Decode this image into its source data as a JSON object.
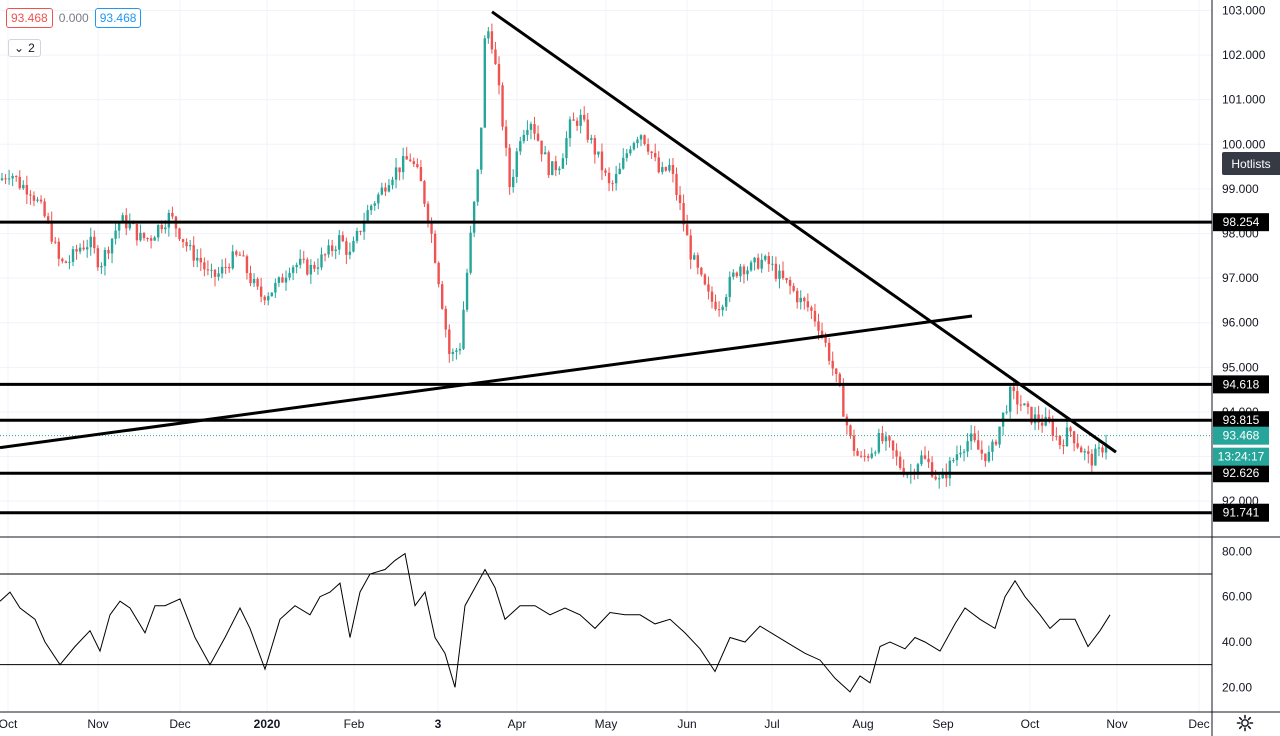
{
  "legend": {
    "open": "93.468",
    "change": "0.000",
    "close": "93.468"
  },
  "indicators_count": "2",
  "hotlists_label": "Hotlists",
  "countdown": "13:24:17",
  "colors": {
    "up": "#26a69a",
    "down": "#ef5350",
    "last": "#26a69a",
    "line": "#000000"
  },
  "chart_data": {
    "type": "candlestick",
    "symbol_last": 93.468,
    "price_axis": {
      "ticks": [
        103.0,
        102.0,
        101.0,
        100.0,
        99.0,
        98.0,
        97.0,
        96.0,
        95.0,
        94.0,
        93.0,
        92.0
      ],
      "range": [
        91.6,
        103.1
      ]
    },
    "time_axis_labels": [
      "Oct",
      "Nov",
      "Dec",
      "2020",
      "Feb",
      "3",
      "Apr",
      "May",
      "Jun",
      "Jul",
      "Aug",
      "Sep",
      "Oct",
      "Nov",
      "Dec"
    ],
    "horizontal_levels": [
      98.254,
      94.618,
      93.815,
      92.626,
      91.741
    ],
    "level_labels": [
      "98.254",
      "94.618",
      "93.815",
      "92.626",
      "91.741"
    ],
    "last_label": "93.468",
    "price_path": [
      [
        0,
        99.2
      ],
      [
        10,
        99.4
      ],
      [
        20,
        99.1
      ],
      [
        30,
        99.0
      ],
      [
        40,
        98.6
      ],
      [
        50,
        98.1
      ],
      [
        60,
        97.3
      ],
      [
        70,
        97.4
      ],
      [
        80,
        97.7
      ],
      [
        90,
        97.8
      ],
      [
        100,
        97.3
      ],
      [
        110,
        97.8
      ],
      [
        120,
        98.3
      ],
      [
        130,
        98.2
      ],
      [
        140,
        97.9
      ],
      [
        150,
        97.9
      ],
      [
        160,
        98.2
      ],
      [
        170,
        98.4
      ],
      [
        180,
        98.0
      ],
      [
        190,
        97.6
      ],
      [
        200,
        97.4
      ],
      [
        210,
        97.0
      ],
      [
        220,
        97.1
      ],
      [
        230,
        97.4
      ],
      [
        240,
        97.5
      ],
      [
        250,
        97.0
      ],
      [
        260,
        96.6
      ],
      [
        270,
        96.7
      ],
      [
        280,
        96.9
      ],
      [
        290,
        97.3
      ],
      [
        300,
        97.3
      ],
      [
        310,
        97.2
      ],
      [
        320,
        97.4
      ],
      [
        330,
        97.6
      ],
      [
        340,
        97.9
      ],
      [
        350,
        97.5
      ],
      [
        360,
        98.1
      ],
      [
        370,
        98.6
      ],
      [
        380,
        98.9
      ],
      [
        390,
        99.3
      ],
      [
        400,
        99.5
      ],
      [
        410,
        99.7
      ],
      [
        420,
        99.2
      ],
      [
        430,
        98.2
      ],
      [
        440,
        96.8
      ],
      [
        450,
        95.2
      ],
      [
        460,
        95.5
      ],
      [
        470,
        97.8
      ],
      [
        480,
        99.8
      ],
      [
        485,
        102.4
      ],
      [
        490,
        102.6
      ],
      [
        500,
        101.0
      ],
      [
        510,
        99.0
      ],
      [
        520,
        100.2
      ],
      [
        530,
        100.6
      ],
      [
        540,
        100.0
      ],
      [
        550,
        99.4
      ],
      [
        560,
        99.6
      ],
      [
        570,
        100.4
      ],
      [
        580,
        100.6
      ],
      [
        590,
        100.1
      ],
      [
        600,
        99.6
      ],
      [
        610,
        99.0
      ],
      [
        620,
        99.4
      ],
      [
        630,
        100.0
      ],
      [
        640,
        100.3
      ],
      [
        650,
        99.9
      ],
      [
        660,
        99.3
      ],
      [
        670,
        99.5
      ],
      [
        680,
        98.6
      ],
      [
        690,
        97.6
      ],
      [
        700,
        97.0
      ],
      [
        710,
        96.5
      ],
      [
        720,
        96.4
      ],
      [
        730,
        96.9
      ],
      [
        740,
        97.3
      ],
      [
        750,
        97.2
      ],
      [
        760,
        97.4
      ],
      [
        770,
        97.3
      ],
      [
        780,
        97.0
      ],
      [
        790,
        96.8
      ],
      [
        800,
        96.5
      ],
      [
        810,
        96.3
      ],
      [
        820,
        95.9
      ],
      [
        830,
        95.2
      ],
      [
        840,
        94.4
      ],
      [
        850,
        93.4
      ],
      [
        860,
        92.9
      ],
      [
        870,
        93.1
      ],
      [
        880,
        93.4
      ],
      [
        890,
        93.2
      ],
      [
        900,
        92.8
      ],
      [
        910,
        92.6
      ],
      [
        920,
        93.0
      ],
      [
        930,
        92.8
      ],
      [
        940,
        92.4
      ],
      [
        950,
        92.8
      ],
      [
        960,
        93.2
      ],
      [
        970,
        93.4
      ],
      [
        980,
        93.1
      ],
      [
        990,
        93.0
      ],
      [
        1000,
        93.7
      ],
      [
        1010,
        94.4
      ],
      [
        1020,
        94.2
      ],
      [
        1030,
        93.9
      ],
      [
        1040,
        93.8
      ],
      [
        1050,
        93.7
      ],
      [
        1060,
        93.3
      ],
      [
        1070,
        93.6
      ],
      [
        1080,
        93.2
      ],
      [
        1090,
        92.9
      ],
      [
        1100,
        93.1
      ],
      [
        1108,
        93.468
      ]
    ],
    "trendlines": [
      {
        "from": [
          492,
          102.97
        ],
        "to": [
          1116,
          93.1
        ]
      },
      {
        "from": [
          0,
          93.2
        ],
        "to": [
          972,
          96.15
        ]
      }
    ],
    "rsi": {
      "ticks": [
        80.0,
        60.0,
        40.0,
        20.0
      ],
      "tick_labels": [
        "80.00",
        "60.00",
        "40.00",
        "20.00"
      ],
      "bands": [
        70,
        30
      ],
      "path": [
        [
          0,
          58
        ],
        [
          10,
          62
        ],
        [
          20,
          55
        ],
        [
          35,
          50
        ],
        [
          45,
          40
        ],
        [
          60,
          30
        ],
        [
          75,
          38
        ],
        [
          90,
          45
        ],
        [
          100,
          36
        ],
        [
          110,
          52
        ],
        [
          120,
          58
        ],
        [
          130,
          55
        ],
        [
          145,
          44
        ],
        [
          155,
          56
        ],
        [
          165,
          56
        ],
        [
          180,
          59
        ],
        [
          195,
          42
        ],
        [
          210,
          30
        ],
        [
          225,
          42
        ],
        [
          240,
          55
        ],
        [
          250,
          46
        ],
        [
          265,
          28
        ],
        [
          280,
          50
        ],
        [
          295,
          56
        ],
        [
          310,
          52
        ],
        [
          320,
          60
        ],
        [
          330,
          62
        ],
        [
          340,
          66
        ],
        [
          350,
          42
        ],
        [
          360,
          62
        ],
        [
          370,
          70
        ],
        [
          385,
          72
        ],
        [
          395,
          76
        ],
        [
          405,
          79
        ],
        [
          415,
          56
        ],
        [
          425,
          62
        ],
        [
          435,
          42
        ],
        [
          445,
          35
        ],
        [
          455,
          20
        ],
        [
          465,
          56
        ],
        [
          475,
          64
        ],
        [
          485,
          72
        ],
        [
          495,
          64
        ],
        [
          505,
          50
        ],
        [
          520,
          56
        ],
        [
          535,
          56
        ],
        [
          550,
          52
        ],
        [
          565,
          55
        ],
        [
          580,
          52
        ],
        [
          595,
          46
        ],
        [
          610,
          53
        ],
        [
          625,
          52
        ],
        [
          640,
          52
        ],
        [
          655,
          48
        ],
        [
          670,
          50
        ],
        [
          685,
          44
        ],
        [
          700,
          37
        ],
        [
          715,
          27
        ],
        [
          730,
          42
        ],
        [
          745,
          40
        ],
        [
          760,
          47
        ],
        [
          775,
          43
        ],
        [
          790,
          39
        ],
        [
          805,
          35
        ],
        [
          820,
          32
        ],
        [
          835,
          24
        ],
        [
          850,
          18
        ],
        [
          860,
          25
        ],
        [
          870,
          22
        ],
        [
          880,
          38
        ],
        [
          890,
          40
        ],
        [
          905,
          37
        ],
        [
          915,
          42
        ],
        [
          925,
          40
        ],
        [
          940,
          36
        ],
        [
          955,
          48
        ],
        [
          965,
          55
        ],
        [
          980,
          50
        ],
        [
          995,
          46
        ],
        [
          1005,
          60
        ],
        [
          1015,
          67
        ],
        [
          1025,
          60
        ],
        [
          1040,
          52
        ],
        [
          1050,
          46
        ],
        [
          1060,
          50
        ],
        [
          1075,
          50
        ],
        [
          1088,
          38
        ],
        [
          1100,
          45
        ],
        [
          1110,
          52
        ]
      ]
    }
  }
}
